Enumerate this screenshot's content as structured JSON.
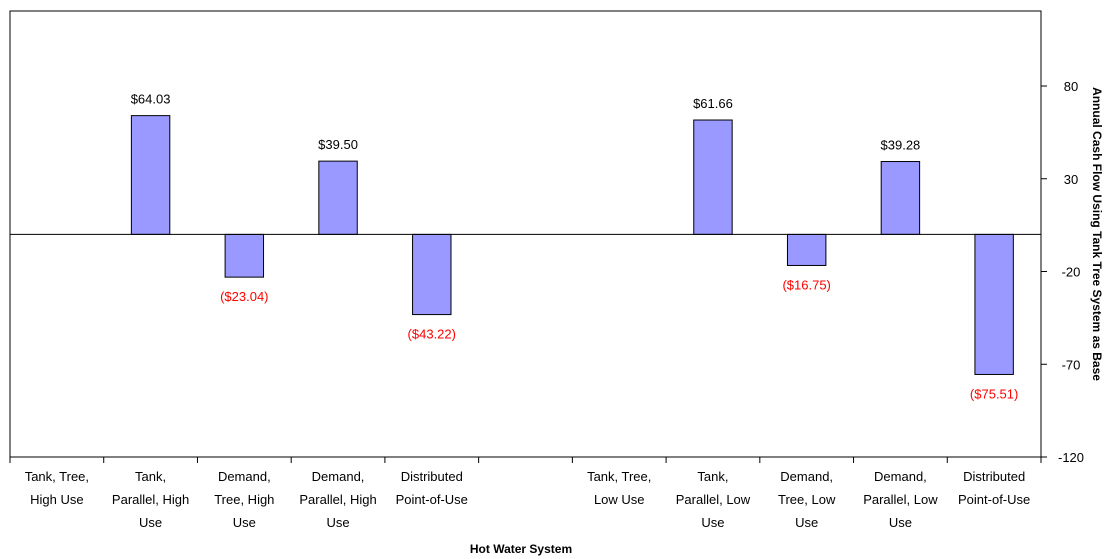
{
  "chart_data": {
    "type": "bar",
    "title": "",
    "xlabel": "Hot Water System",
    "ylabel": "Annual Cash Flow Using Tank Tree System as Base",
    "ylim": [
      -120,
      80
    ],
    "yticks": [
      80,
      30,
      -20,
      -70,
      -120
    ],
    "grid": false,
    "legend": "none",
    "y_axis_side": "right",
    "categories": [
      [
        "Tank, Tree,",
        "High Use"
      ],
      [
        "Tank,",
        "Parallel, High",
        "Use"
      ],
      [
        "Demand,",
        "Tree, High",
        "Use"
      ],
      [
        "Demand,",
        "Parallel, High",
        "Use"
      ],
      [
        "Distributed",
        "Point-of-Use"
      ],
      [
        ""
      ],
      [
        "Tank, Tree,",
        "Low Use"
      ],
      [
        "Tank,",
        "Parallel, Low",
        "Use"
      ],
      [
        "Demand,",
        "Tree, Low",
        "Use"
      ],
      [
        "Demand,",
        "Parallel, Low",
        "Use"
      ],
      [
        "Distributed",
        "Point-of-Use"
      ]
    ],
    "values": [
      0,
      64.03,
      -23.04,
      39.5,
      -43.22,
      null,
      0,
      61.66,
      -16.75,
      39.28,
      -75.51
    ],
    "data_labels": [
      "",
      "$64.03",
      "($23.04)",
      "$39.50",
      "($43.22)",
      "",
      "",
      "$61.66",
      "($16.75)",
      "$39.28",
      "($75.51)"
    ],
    "colors": {
      "bar_fill": "#9999ff",
      "bar_stroke": "#000000",
      "positive_label": "#000000",
      "negative_label": "#ff0000",
      "axis": "#000000"
    }
  }
}
